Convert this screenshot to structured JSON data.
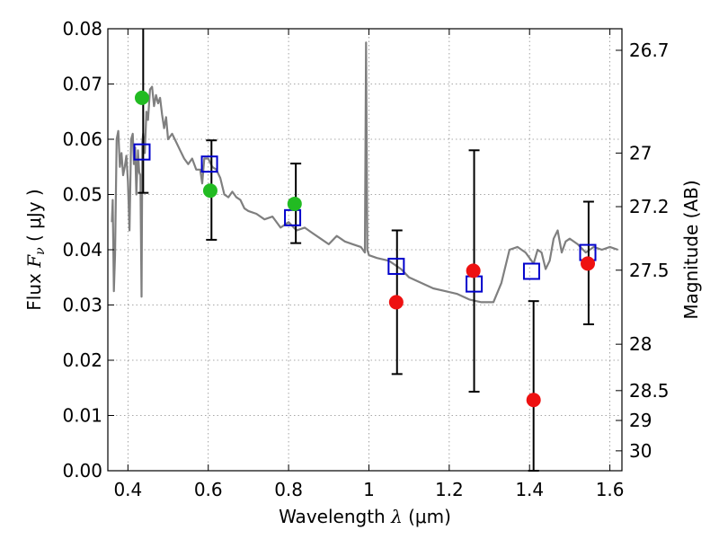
{
  "chart_data": {
    "type": "scatter",
    "xlabel_text": "Wavelength",
    "xlabel_symbol": "λ",
    "xlabel_unit": "(μm)",
    "ylabel_text": "Flux",
    "ylabel_symbol": "F",
    "ylabel_subscript": "ν",
    "ylabel_unit": "( μJy )",
    "y2label": "Magnitude (AB)",
    "xlim": [
      0.35,
      1.63
    ],
    "ylim": [
      0.0,
      0.08
    ],
    "grid": true,
    "x_ticks": [
      0.4,
      0.6,
      0.8,
      1.0,
      1.2,
      1.4,
      1.6
    ],
    "x_tick_labels": [
      "0.4",
      "0.6",
      "0.8",
      "1",
      "1.2",
      "1.4",
      "1.6"
    ],
    "y_ticks": [
      0.0,
      0.01,
      0.02,
      0.03,
      0.04,
      0.05,
      0.06,
      0.07,
      0.08
    ],
    "y_tick_labels": [
      "0.00",
      "0.01",
      "0.02",
      "0.03",
      "0.04",
      "0.05",
      "0.06",
      "0.07",
      "0.08"
    ],
    "y2_ticks": [
      {
        "label": "26.7",
        "flux": 0.0761
      },
      {
        "label": "27",
        "flux": 0.0575
      },
      {
        "label": "27.2",
        "flux": 0.0478
      },
      {
        "label": "27.5",
        "flux": 0.0363
      },
      {
        "label": "28",
        "flux": 0.0229
      },
      {
        "label": "28.5",
        "flux": 0.0145
      },
      {
        "label": "29",
        "flux": 0.0091
      },
      {
        "label": "30",
        "flux": 0.0036
      }
    ],
    "colors": {
      "model": "#7f7f7f",
      "green": "#22bb22",
      "red": "#ee1111",
      "square": "#0000cc",
      "errorbar": "#000000",
      "grid": "#8c8c8c"
    },
    "model_spectrum": {
      "x": [
        0.36,
        0.362,
        0.365,
        0.368,
        0.372,
        0.376,
        0.38,
        0.384,
        0.388,
        0.392,
        0.396,
        0.4,
        0.404,
        0.408,
        0.412,
        0.415,
        0.418,
        0.421,
        0.425,
        0.428,
        0.431,
        0.434,
        0.436,
        0.438,
        0.442,
        0.446,
        0.45,
        0.455,
        0.46,
        0.465,
        0.47,
        0.475,
        0.48,
        0.485,
        0.49,
        0.495,
        0.5,
        0.51,
        0.52,
        0.53,
        0.54,
        0.55,
        0.56,
        0.57,
        0.58,
        0.585,
        0.59,
        0.6,
        0.61,
        0.62,
        0.63,
        0.64,
        0.65,
        0.66,
        0.67,
        0.68,
        0.69,
        0.7,
        0.72,
        0.74,
        0.76,
        0.78,
        0.8,
        0.82,
        0.84,
        0.86,
        0.88,
        0.9,
        0.92,
        0.94,
        0.96,
        0.98,
        0.99,
        0.993,
        0.996,
        1.0,
        1.02,
        1.05,
        1.08,
        1.1,
        1.13,
        1.16,
        1.19,
        1.22,
        1.25,
        1.28,
        1.31,
        1.33,
        1.35,
        1.37,
        1.39,
        1.41,
        1.42,
        1.43,
        1.44,
        1.45,
        1.46,
        1.47,
        1.48,
        1.49,
        1.5,
        1.52,
        1.54,
        1.56,
        1.58,
        1.6,
        1.62
      ],
      "y": [
        0.045,
        0.049,
        0.0325,
        0.039,
        0.06,
        0.0615,
        0.055,
        0.0575,
        0.0535,
        0.055,
        0.057,
        0.0525,
        0.0435,
        0.06,
        0.061,
        0.0555,
        0.0585,
        0.05,
        0.058,
        0.054,
        0.0535,
        0.0315,
        0.0595,
        0.061,
        0.0575,
        0.065,
        0.0635,
        0.069,
        0.0695,
        0.066,
        0.068,
        0.0665,
        0.0675,
        0.0645,
        0.062,
        0.064,
        0.06,
        0.061,
        0.0595,
        0.058,
        0.0565,
        0.0555,
        0.0565,
        0.0545,
        0.0545,
        0.052,
        0.0565,
        0.0565,
        0.055,
        0.0545,
        0.053,
        0.05,
        0.0495,
        0.0505,
        0.0495,
        0.049,
        0.0475,
        0.047,
        0.0465,
        0.0455,
        0.046,
        0.044,
        0.045,
        0.0435,
        0.044,
        0.043,
        0.042,
        0.041,
        0.0425,
        0.0415,
        0.041,
        0.0405,
        0.0395,
        0.0775,
        0.04,
        0.039,
        0.0385,
        0.038,
        0.0365,
        0.035,
        0.034,
        0.033,
        0.0325,
        0.032,
        0.031,
        0.0305,
        0.0305,
        0.034,
        0.04,
        0.0405,
        0.0395,
        0.0375,
        0.04,
        0.0395,
        0.0365,
        0.038,
        0.042,
        0.0435,
        0.0395,
        0.0415,
        0.042,
        0.041,
        0.0395,
        0.0405,
        0.04,
        0.0405,
        0.04
      ]
    },
    "green_points": [
      {
        "x": 0.435,
        "y": 0.0675
      },
      {
        "x": 0.605,
        "y": 0.0507
      },
      {
        "x": 0.815,
        "y": 0.0483
      }
    ],
    "red_points": [
      {
        "x": 1.068,
        "y": 0.0305
      },
      {
        "x": 1.26,
        "y": 0.0362
      },
      {
        "x": 1.41,
        "y": 0.0128
      },
      {
        "x": 1.545,
        "y": 0.0375
      }
    ],
    "model_squares": [
      {
        "x": 0.435,
        "y": 0.0577
      },
      {
        "x": 0.603,
        "y": 0.0555
      },
      {
        "x": 0.81,
        "y": 0.0458
      },
      {
        "x": 1.068,
        "y": 0.037
      },
      {
        "x": 1.262,
        "y": 0.0338
      },
      {
        "x": 1.405,
        "y": 0.0361
      },
      {
        "x": 1.545,
        "y": 0.0395
      }
    ],
    "error_bars": [
      {
        "x": 0.438,
        "low": 0.0503,
        "high": 0.0805
      },
      {
        "x": 0.608,
        "low": 0.0418,
        "high": 0.0598
      },
      {
        "x": 0.818,
        "low": 0.0412,
        "high": 0.0556
      },
      {
        "x": 1.07,
        "low": 0.0175,
        "high": 0.0435
      },
      {
        "x": 1.262,
        "low": 0.0143,
        "high": 0.058
      },
      {
        "x": 1.41,
        "low": 0.0,
        "high": 0.0307
      },
      {
        "x": 1.547,
        "low": 0.0265,
        "high": 0.0487
      }
    ]
  }
}
